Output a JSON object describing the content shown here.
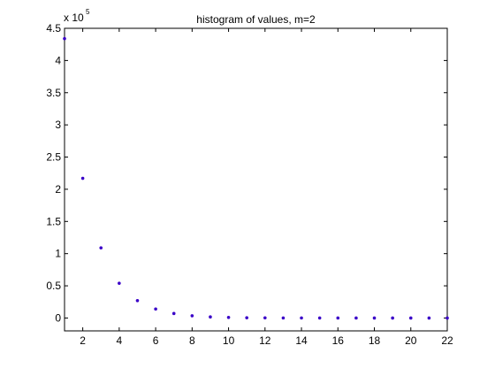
{
  "chart_data": {
    "type": "scatter",
    "title": "histogram of values, m=2",
    "xlabel": "",
    "ylabel": "",
    "xlim": [
      1,
      22
    ],
    "ylim": [
      -0.2,
      4.5
    ],
    "y_multiplier_base": "x 10",
    "y_multiplier_exp": "5",
    "grid": false,
    "legend": "none",
    "marker_color": "#3a00c8",
    "x_ticks": [
      2,
      4,
      6,
      8,
      10,
      12,
      14,
      16,
      18,
      20,
      22
    ],
    "y_ticks": [
      0,
      0.5,
      1,
      1.5,
      2,
      2.5,
      3,
      3.5,
      4,
      4.5
    ],
    "x_tick_labels": [
      "2",
      "4",
      "6",
      "8",
      "10",
      "12",
      "14",
      "16",
      "18",
      "20",
      "22"
    ],
    "y_tick_labels": [
      "0",
      "0.5",
      "1",
      "1.5",
      "2",
      "2.5",
      "3",
      "3.5",
      "4",
      "4.5"
    ],
    "x": [
      1,
      2,
      3,
      4,
      5,
      6,
      7,
      8,
      9,
      10,
      11,
      12,
      13,
      14,
      15,
      16,
      17,
      18,
      19,
      20,
      21,
      22
    ],
    "y": [
      4.34,
      2.17,
      1.09,
      0.54,
      0.27,
      0.14,
      0.07,
      0.035,
      0.017,
      0.009,
      0.004,
      0.002,
      0.001,
      0.0005,
      0.0003,
      0.0001,
      0.0001,
      0,
      0,
      0,
      0,
      0
    ]
  }
}
